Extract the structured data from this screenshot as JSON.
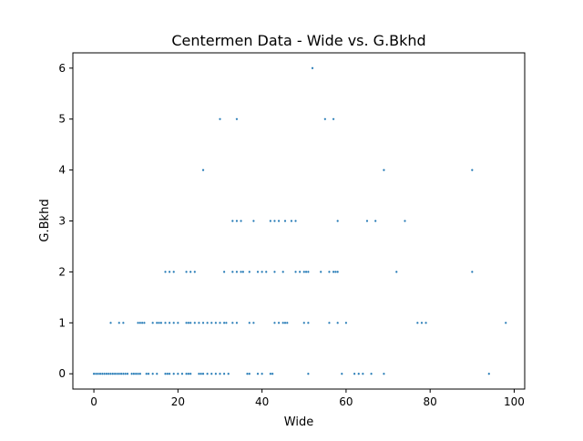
{
  "chart_data": {
    "type": "scatter",
    "title": "Centermen Data - Wide vs. G.Bkhd",
    "xlabel": "Wide",
    "ylabel": "G.Bkhd",
    "xlim": [
      -5,
      102.5
    ],
    "ylim": [
      -0.3,
      6.3
    ],
    "xticks": [
      0,
      20,
      40,
      60,
      80,
      100
    ],
    "yticks": [
      0,
      1,
      2,
      3,
      4,
      5,
      6
    ],
    "grid": false,
    "legend": "none",
    "marker_color": "#1f77b4",
    "series": [
      {
        "x": [
          0,
          0.5,
          1,
          1.5,
          2,
          2.5,
          3,
          3.5,
          4,
          4.5,
          5,
          5.5,
          6,
          6.5,
          7,
          7.5,
          8,
          9,
          9.5,
          10,
          10.5,
          11,
          12.5,
          13,
          14,
          15,
          17,
          17.5,
          18,
          19,
          20,
          21,
          22,
          22.5,
          23,
          25,
          25.5,
          26,
          27,
          28,
          29,
          30,
          31,
          32,
          36.5,
          37,
          39,
          40,
          42,
          42.5,
          51,
          59,
          62,
          63,
          64,
          66,
          69,
          94,
          4,
          6,
          7,
          10.5,
          11,
          11.5,
          12,
          14,
          15,
          15.5,
          16,
          17,
          18,
          19,
          20,
          22,
          22.5,
          23,
          24,
          25,
          26,
          27,
          28,
          29,
          30,
          31,
          31.5,
          33,
          34,
          37,
          38,
          43,
          44,
          45,
          45.5,
          46,
          50,
          51,
          56,
          58,
          60,
          77,
          78,
          79,
          98,
          17,
          18,
          19,
          22,
          23,
          24,
          31,
          33,
          34,
          35,
          35.5,
          37,
          39,
          40,
          41,
          43,
          45,
          48,
          49,
          50,
          50.5,
          51,
          54,
          56,
          57,
          57.5,
          58,
          72,
          90,
          33,
          34,
          35,
          38,
          42,
          43,
          44,
          45.5,
          47,
          48,
          58,
          65,
          67,
          74,
          26,
          69,
          90,
          30,
          34,
          55,
          57,
          52
        ],
        "y": [
          0,
          0,
          0,
          0,
          0,
          0,
          0,
          0,
          0,
          0,
          0,
          0,
          0,
          0,
          0,
          0,
          0,
          0,
          0,
          0,
          0,
          0,
          0,
          0,
          0,
          0,
          0,
          0,
          0,
          0,
          0,
          0,
          0,
          0,
          0,
          0,
          0,
          0,
          0,
          0,
          0,
          0,
          0,
          0,
          0,
          0,
          0,
          0,
          0,
          0,
          0,
          0,
          0,
          0,
          0,
          0,
          0,
          0,
          1,
          1,
          1,
          1,
          1,
          1,
          1,
          1,
          1,
          1,
          1,
          1,
          1,
          1,
          1,
          1,
          1,
          1,
          1,
          1,
          1,
          1,
          1,
          1,
          1,
          1,
          1,
          1,
          1,
          1,
          1,
          1,
          1,
          1,
          1,
          1,
          1,
          1,
          1,
          1,
          1,
          1,
          1,
          1,
          1,
          2,
          2,
          2,
          2,
          2,
          2,
          2,
          2,
          2,
          2,
          2,
          2,
          2,
          2,
          2,
          2,
          2,
          2,
          2,
          2,
          2,
          2,
          2,
          2,
          2,
          2,
          2,
          2,
          2,
          3,
          3,
          3,
          3,
          3,
          3,
          3,
          3,
          3,
          3,
          3,
          3,
          3,
          3,
          4,
          4,
          4,
          5,
          5,
          5,
          5,
          6
        ]
      }
    ]
  }
}
